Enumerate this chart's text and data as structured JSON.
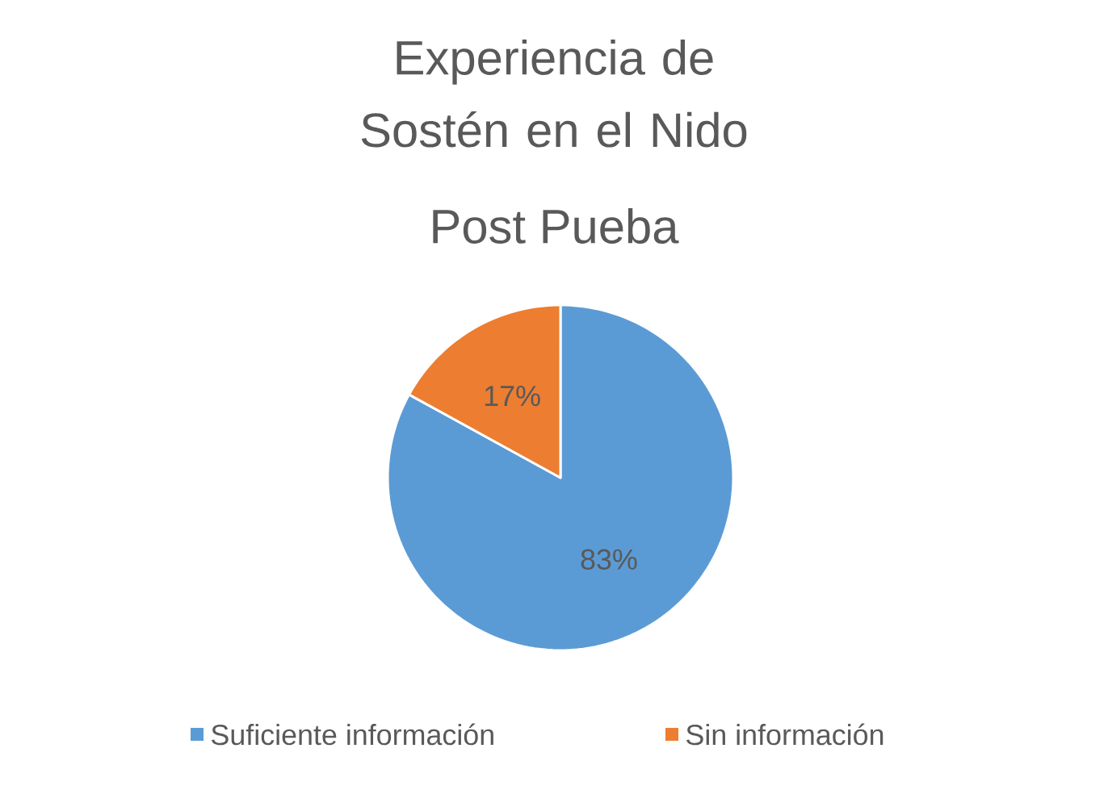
{
  "chart_data": {
    "type": "pie",
    "title": "Experiencia de Sostén en el Nido",
    "subtitle": "Post Pueba",
    "categories": [
      "Suficiente información",
      "Sin información"
    ],
    "values": [
      83,
      17
    ],
    "value_labels": [
      "83%",
      "17%"
    ],
    "colors": [
      "#5b9bd5",
      "#ed7d31"
    ],
    "legend": "bottom"
  }
}
